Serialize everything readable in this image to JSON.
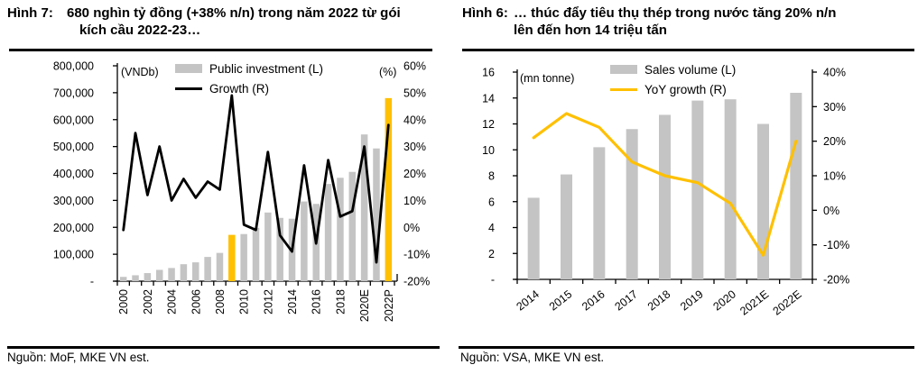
{
  "figures": [
    {
      "label_prefix": "Hình 7:",
      "title_line1": "680 nghìn tỷ đồng (+38% n/n) trong năm 2022 từ gói",
      "title_line2": "kích cầu 2022-23…",
      "source": "Nguồn: MoF, MKE VN est."
    },
    {
      "label_prefix": "Hình 6:",
      "title_line1": "… thúc đẩy tiêu thụ thép trong nước tăng 20% n/n",
      "title_line2": "lên đến hơn 14 triệu tấn",
      "source": "Nguồn: VSA, MKE VN est."
    }
  ],
  "chart_data": [
    {
      "type": "bar+line",
      "title": "Hình 7: 680 nghìn tỷ đồng (+38% n/n) trong năm 2022 từ gói kích cầu 2022-23…",
      "categories": [
        "2000",
        "2001",
        "2002",
        "2003",
        "2004",
        "2005",
        "2006",
        "2007",
        "2008",
        "2009",
        "2010",
        "2011",
        "2012",
        "2013",
        "2014",
        "2015",
        "2016",
        "2017",
        "2018",
        "2019",
        "2020E",
        "2021E",
        "2022P"
      ],
      "bar_series": {
        "name": "Public investment (L)",
        "unit": "VNDb",
        "values": [
          16000,
          22000,
          30000,
          42000,
          49000,
          63000,
          70000,
          90000,
          105000,
          172000,
          175000,
          198000,
          255000,
          235000,
          232000,
          296000,
          287000,
          361000,
          384000,
          406000,
          545000,
          493000,
          680000
        ]
      },
      "line_series": {
        "name": "Growth (R)",
        "unit": "%",
        "values": [
          -1,
          35,
          12,
          30,
          10,
          18,
          11,
          17,
          14,
          49,
          1,
          -1,
          28,
          -3,
          -9,
          23,
          -6,
          25,
          4,
          6,
          30,
          -13,
          38
        ]
      },
      "highlight_indexes": [
        9,
        22
      ],
      "highlight_note": "2009 and 2022P bars shown in gold (stimulus years)",
      "left_axis": {
        "label": "(VNDb)",
        "min": 0,
        "max": 800000,
        "step": 100000,
        "tick_labels": [
          "800,000",
          "700,000",
          "600,000",
          "500,000",
          "400,000",
          "300,000",
          "200,000",
          "100,000",
          "-"
        ]
      },
      "right_axis": {
        "label": "(%)",
        "min": -20,
        "max": 60,
        "step": 10,
        "tick_labels": [
          "60%",
          "50%",
          "40%",
          "30%",
          "20%",
          "10%",
          "0%",
          "-10%",
          "-20%"
        ]
      },
      "x_label_every": 2,
      "legend_position": "top-center-inside",
      "grid": false,
      "colors": {
        "bar": "#c4c4c4",
        "bar_highlight": "#ffc000",
        "line": "#000000"
      }
    },
    {
      "type": "bar+line",
      "title": "Hình 6: … thúc đẩy tiêu thụ thép trong nước tăng 20% n/n lên đến hơn 14 triệu tấn",
      "categories": [
        "2014",
        "2015",
        "2016",
        "2017",
        "2018",
        "2019",
        "2020",
        "2021E",
        "2022E"
      ],
      "bar_series": {
        "name": "Sales volume (L)",
        "unit": "mn tonne",
        "values": [
          6.3,
          8.1,
          10.2,
          11.6,
          12.7,
          13.8,
          13.9,
          12.0,
          14.4
        ]
      },
      "line_series": {
        "name": "YoY growth (R)",
        "unit": "%",
        "values": [
          21,
          28,
          24,
          14,
          10,
          8,
          2,
          -13,
          20
        ]
      },
      "highlight_indexes": [],
      "left_axis": {
        "label": "(mn tonne)",
        "min": 0,
        "max": 16,
        "step": 2,
        "tick_labels": [
          "16",
          "14",
          "12",
          "10",
          "8",
          "6",
          "4",
          "2",
          "-"
        ]
      },
      "right_axis": {
        "label": "",
        "min": -20,
        "max": 40,
        "step": 10,
        "tick_labels": [
          "40%",
          "30%",
          "20%",
          "10%",
          "0%",
          "-10%",
          "-20%"
        ]
      },
      "x_label_every": 1,
      "legend_position": "top-center-inside",
      "grid": false,
      "colors": {
        "bar": "#c4c4c4",
        "bar_highlight": "#ffc000",
        "line": "#ffc000"
      }
    }
  ]
}
